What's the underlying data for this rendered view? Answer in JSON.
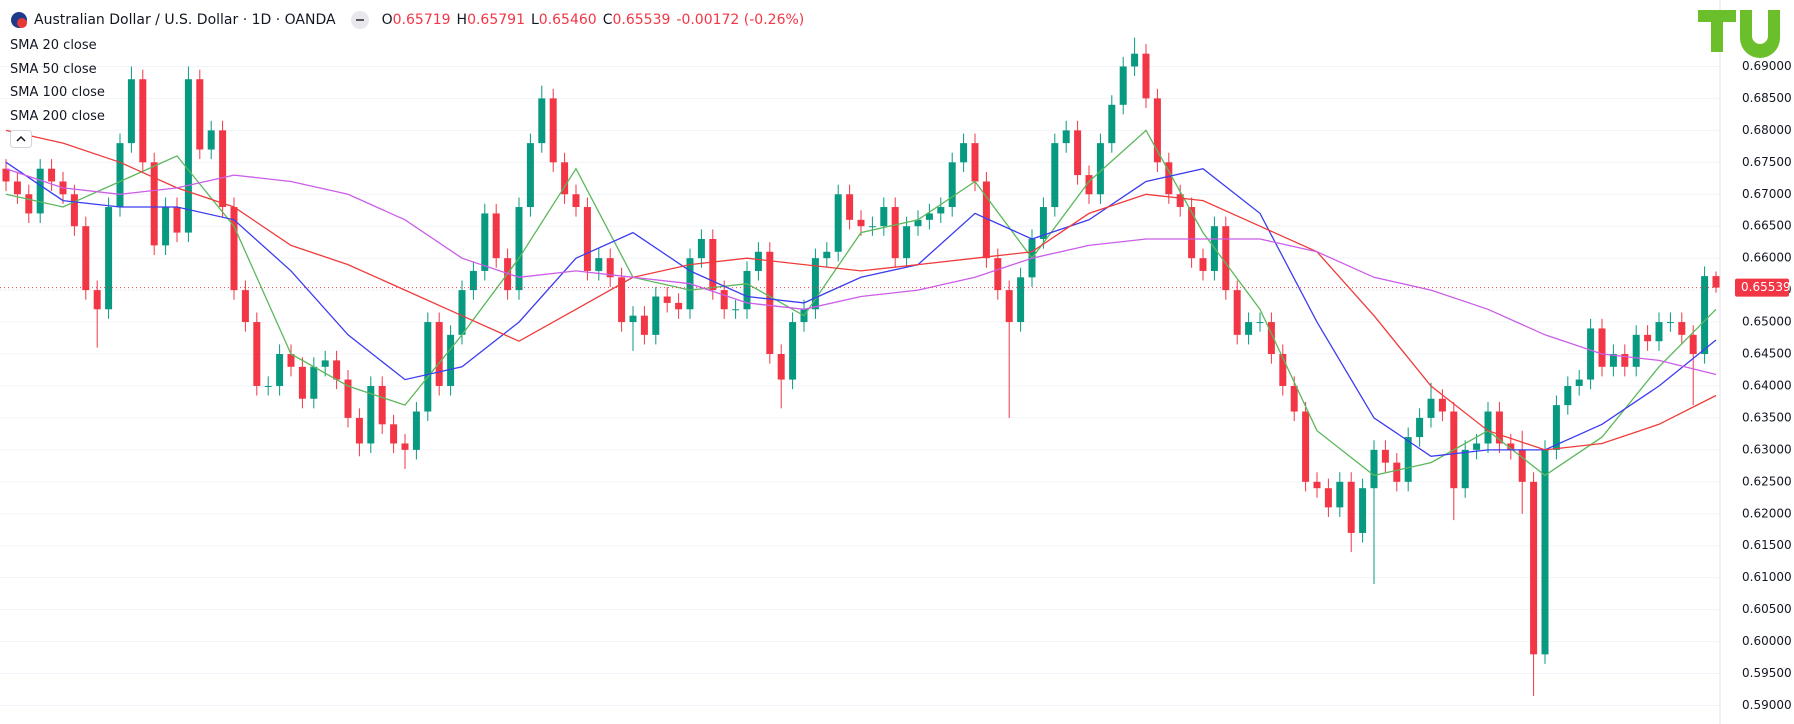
{
  "chart_data": {
    "type": "candlestick",
    "title": "Australian Dollar / U.S. Dollar · 1D · OANDA",
    "ohlc": [
      {
        "key": "O",
        "value": "0.65719"
      },
      {
        "key": "H",
        "value": "0.65791"
      },
      {
        "key": "L",
        "value": "0.65460"
      },
      {
        "key": "C",
        "value": "0.65539"
      }
    ],
    "change": "-0.00172 (-0.26%)",
    "up_color": "#089981",
    "down_color": "#f23645",
    "ylim": [
      0.5871,
      0.7004
    ],
    "yticks": [
      {
        "value": 0.59,
        "label": "0.59000"
      },
      {
        "value": 0.595,
        "label": "0.59500"
      },
      {
        "value": 0.6,
        "label": "0.60000"
      },
      {
        "value": 0.605,
        "label": "0.60500"
      },
      {
        "value": 0.61,
        "label": "0.61000"
      },
      {
        "value": 0.615,
        "label": "0.61500"
      },
      {
        "value": 0.62,
        "label": "0.62000"
      },
      {
        "value": 0.625,
        "label": "0.62500"
      },
      {
        "value": 0.63,
        "label": "0.63000"
      },
      {
        "value": 0.635,
        "label": "0.63500"
      },
      {
        "value": 0.64,
        "label": "0.64000"
      },
      {
        "value": 0.645,
        "label": "0.64500"
      },
      {
        "value": 0.65,
        "label": "0.65000"
      },
      {
        "value": 0.655,
        "label": "0.65500"
      },
      {
        "value": 0.66,
        "label": "0.66000"
      },
      {
        "value": 0.665,
        "label": "0.66500"
      },
      {
        "value": 0.67,
        "label": "0.67000"
      },
      {
        "value": 0.675,
        "label": "0.67500"
      },
      {
        "value": 0.68,
        "label": "0.68000"
      },
      {
        "value": 0.685,
        "label": "0.68500"
      },
      {
        "value": 0.69,
        "label": "0.69000"
      }
    ],
    "grid": true,
    "last_price": {
      "value": 0.65539,
      "label": "0.65539"
    },
    "candles": {
      "open": [
        0.674,
        0.672,
        0.67,
        0.667,
        0.674,
        0.672,
        0.67,
        0.665,
        0.655,
        0.652,
        0.668,
        0.678,
        0.688,
        0.675,
        0.662,
        0.668,
        0.664,
        0.688,
        0.677,
        0.68,
        0.668,
        0.655,
        0.65,
        0.64,
        0.64,
        0.645,
        0.643,
        0.638,
        0.643,
        0.644,
        0.641,
        0.635,
        0.631,
        0.64,
        0.634,
        0.631,
        0.63,
        0.636,
        0.65,
        0.64,
        0.648,
        0.655,
        0.658,
        0.667,
        0.66,
        0.655,
        0.668,
        0.678,
        0.685,
        0.675,
        0.67,
        0.668,
        0.658,
        0.66,
        0.657,
        0.65,
        0.651,
        0.648,
        0.654,
        0.653,
        0.652,
        0.66,
        0.663,
        0.655,
        0.652,
        0.652,
        0.658,
        0.661,
        0.645,
        0.641,
        0.65,
        0.652,
        0.66,
        0.661,
        0.67,
        0.666,
        0.665,
        0.665,
        0.668,
        0.66,
        0.665,
        0.666,
        0.667,
        0.668,
        0.675,
        0.678,
        0.672,
        0.66,
        0.655,
        0.65,
        0.657,
        0.663,
        0.668,
        0.678,
        0.68,
        0.673,
        0.67,
        0.678,
        0.684,
        0.69,
        0.692,
        0.685,
        0.675,
        0.67,
        0.668,
        0.66,
        0.658,
        0.665,
        0.655,
        0.648,
        0.65,
        0.65,
        0.645,
        0.64,
        0.636,
        0.625,
        0.624,
        0.621,
        0.625,
        0.617,
        0.624,
        0.63,
        0.628,
        0.625,
        0.632,
        0.635,
        0.638,
        0.636,
        0.624,
        0.63,
        0.631,
        0.636,
        0.631,
        0.63,
        0.625,
        0.598,
        0.63,
        0.637,
        0.64,
        0.641,
        0.649,
        0.643,
        0.645,
        0.643,
        0.648,
        0.647,
        0.65,
        0.65,
        0.648,
        0.645,
        0.65719
      ],
      "high": [
        0.6755,
        0.6735,
        0.6715,
        0.6755,
        0.6755,
        0.6735,
        0.6715,
        0.6665,
        0.6565,
        0.6695,
        0.6795,
        0.69,
        0.6895,
        0.6765,
        0.6695,
        0.6695,
        0.69,
        0.6895,
        0.6815,
        0.6815,
        0.6695,
        0.6565,
        0.6515,
        0.6415,
        0.6465,
        0.6465,
        0.6445,
        0.6445,
        0.6455,
        0.6455,
        0.6425,
        0.6365,
        0.6415,
        0.6415,
        0.6355,
        0.6325,
        0.6375,
        0.6515,
        0.6515,
        0.6495,
        0.6565,
        0.6595,
        0.6685,
        0.6685,
        0.6615,
        0.6695,
        0.6795,
        0.687,
        0.6865,
        0.6765,
        0.6715,
        0.6695,
        0.6615,
        0.6615,
        0.6585,
        0.6525,
        0.6525,
        0.6555,
        0.6555,
        0.6545,
        0.6615,
        0.6645,
        0.6645,
        0.6565,
        0.6535,
        0.6595,
        0.6625,
        0.6625,
        0.6465,
        0.6515,
        0.6535,
        0.6615,
        0.6625,
        0.6715,
        0.6715,
        0.6675,
        0.6665,
        0.6695,
        0.6695,
        0.6665,
        0.6675,
        0.6685,
        0.6695,
        0.6765,
        0.6795,
        0.6795,
        0.6735,
        0.6615,
        0.6565,
        0.6585,
        0.6645,
        0.6695,
        0.6795,
        0.6815,
        0.6815,
        0.6745,
        0.6795,
        0.6855,
        0.6915,
        0.6945,
        0.6935,
        0.6865,
        0.6765,
        0.6715,
        0.6695,
        0.6615,
        0.6665,
        0.6665,
        0.6565,
        0.6515,
        0.6515,
        0.6515,
        0.6465,
        0.6415,
        0.6375,
        0.6265,
        0.6255,
        0.6265,
        0.6265,
        0.6255,
        0.6315,
        0.6315,
        0.6295,
        0.6335,
        0.6365,
        0.6405,
        0.6395,
        0.6375,
        0.6315,
        0.6325,
        0.6375,
        0.6375,
        0.6325,
        0.633,
        0.6265,
        0.6315,
        0.6385,
        0.6415,
        0.6425,
        0.6505,
        0.6505,
        0.6465,
        0.6465,
        0.6495,
        0.6495,
        0.6515,
        0.6515,
        0.6515,
        0.6495,
        0.6587,
        0.65791
      ],
      "low": [
        0.6705,
        0.6685,
        0.6655,
        0.6655,
        0.6705,
        0.6685,
        0.6635,
        0.6535,
        0.646,
        0.6505,
        0.6665,
        0.6765,
        0.6735,
        0.6605,
        0.6605,
        0.6625,
        0.6625,
        0.6755,
        0.6755,
        0.6665,
        0.6535,
        0.6485,
        0.6385,
        0.6385,
        0.6385,
        0.6415,
        0.6365,
        0.6365,
        0.6415,
        0.6395,
        0.6335,
        0.629,
        0.6295,
        0.6325,
        0.6295,
        0.627,
        0.6285,
        0.6345,
        0.6385,
        0.6385,
        0.6465,
        0.6535,
        0.6565,
        0.6585,
        0.6535,
        0.6535,
        0.6665,
        0.6765,
        0.6735,
        0.6685,
        0.6665,
        0.6565,
        0.6565,
        0.6555,
        0.6485,
        0.6455,
        0.6465,
        0.6465,
        0.6515,
        0.6505,
        0.6505,
        0.6585,
        0.6535,
        0.6505,
        0.6505,
        0.6505,
        0.6565,
        0.6435,
        0.6365,
        0.6395,
        0.6485,
        0.6505,
        0.6585,
        0.6595,
        0.6645,
        0.6635,
        0.6635,
        0.6635,
        0.6585,
        0.6585,
        0.6635,
        0.6645,
        0.6655,
        0.6665,
        0.6735,
        0.6705,
        0.6585,
        0.6535,
        0.635,
        0.6485,
        0.6555,
        0.6615,
        0.6665,
        0.6765,
        0.6715,
        0.6685,
        0.6685,
        0.6765,
        0.6825,
        0.6885,
        0.6835,
        0.6735,
        0.6685,
        0.6665,
        0.6585,
        0.6565,
        0.6565,
        0.6535,
        0.6465,
        0.6465,
        0.6485,
        0.6435,
        0.6385,
        0.6345,
        0.6235,
        0.6225,
        0.6195,
        0.6195,
        0.614,
        0.6155,
        0.609,
        0.6265,
        0.6235,
        0.6235,
        0.6305,
        0.6335,
        0.6345,
        0.619,
        0.6225,
        0.6285,
        0.6295,
        0.6295,
        0.6285,
        0.62,
        0.5915,
        0.5965,
        0.6285,
        0.6355,
        0.6385,
        0.6395,
        0.6415,
        0.6415,
        0.6415,
        0.6415,
        0.6455,
        0.6455,
        0.6485,
        0.6465,
        0.637,
        0.6435,
        0.6546
      ],
      "close": [
        0.672,
        0.67,
        0.667,
        0.674,
        0.672,
        0.67,
        0.665,
        0.655,
        0.652,
        0.668,
        0.678,
        0.688,
        0.675,
        0.662,
        0.668,
        0.664,
        0.688,
        0.677,
        0.68,
        0.668,
        0.655,
        0.65,
        0.64,
        0.64,
        0.645,
        0.643,
        0.638,
        0.643,
        0.644,
        0.641,
        0.635,
        0.631,
        0.64,
        0.634,
        0.631,
        0.63,
        0.636,
        0.65,
        0.64,
        0.648,
        0.655,
        0.658,
        0.667,
        0.66,
        0.655,
        0.668,
        0.678,
        0.685,
        0.675,
        0.67,
        0.668,
        0.658,
        0.66,
        0.657,
        0.65,
        0.651,
        0.648,
        0.654,
        0.653,
        0.652,
        0.66,
        0.663,
        0.655,
        0.652,
        0.652,
        0.658,
        0.661,
        0.645,
        0.641,
        0.65,
        0.652,
        0.66,
        0.661,
        0.67,
        0.666,
        0.665,
        0.665,
        0.668,
        0.66,
        0.665,
        0.666,
        0.667,
        0.668,
        0.675,
        0.678,
        0.672,
        0.66,
        0.655,
        0.65,
        0.657,
        0.663,
        0.668,
        0.678,
        0.68,
        0.673,
        0.67,
        0.678,
        0.684,
        0.69,
        0.692,
        0.685,
        0.675,
        0.67,
        0.668,
        0.66,
        0.658,
        0.665,
        0.655,
        0.648,
        0.65,
        0.65,
        0.645,
        0.64,
        0.636,
        0.625,
        0.624,
        0.621,
        0.625,
        0.617,
        0.624,
        0.63,
        0.628,
        0.625,
        0.632,
        0.635,
        0.638,
        0.636,
        0.624,
        0.63,
        0.631,
        0.636,
        0.631,
        0.63,
        0.625,
        0.598,
        0.63,
        0.637,
        0.64,
        0.641,
        0.649,
        0.643,
        0.645,
        0.643,
        0.648,
        0.647,
        0.65,
        0.65,
        0.648,
        0.645,
        0.65719,
        0.65539
      ]
    },
    "series": [
      {
        "name": "SMA 20 close",
        "color": "#5cb85c",
        "x": [
          0,
          5,
          10,
          15,
          20,
          25,
          30,
          35,
          40,
          45,
          50,
          55,
          60,
          65,
          70,
          75,
          80,
          85,
          90,
          95,
          100,
          105,
          110,
          115,
          120,
          125,
          130,
          135,
          140,
          145,
          150
        ],
        "values": [
          0.67,
          0.668,
          0.672,
          0.676,
          0.665,
          0.645,
          0.64,
          0.637,
          0.648,
          0.66,
          0.674,
          0.657,
          0.655,
          0.656,
          0.651,
          0.664,
          0.666,
          0.672,
          0.66,
          0.672,
          0.68,
          0.664,
          0.652,
          0.633,
          0.626,
          0.628,
          0.633,
          0.626,
          0.632,
          0.643,
          0.652
        ]
      },
      {
        "name": "SMA 50 close",
        "color": "#3d3df0",
        "x": [
          0,
          5,
          10,
          15,
          20,
          25,
          30,
          35,
          40,
          45,
          50,
          55,
          60,
          65,
          70,
          75,
          80,
          85,
          90,
          95,
          100,
          105,
          110,
          115,
          120,
          125,
          130,
          135,
          140,
          145,
          150
        ],
        "values": [
          0.675,
          0.669,
          0.668,
          0.668,
          0.666,
          0.658,
          0.648,
          0.641,
          0.643,
          0.65,
          0.66,
          0.664,
          0.658,
          0.654,
          0.653,
          0.657,
          0.659,
          0.667,
          0.663,
          0.666,
          0.672,
          0.674,
          0.667,
          0.65,
          0.635,
          0.629,
          0.63,
          0.63,
          0.634,
          0.64,
          0.6472
        ]
      },
      {
        "name": "SMA 100 close",
        "color": "#ef3b3b",
        "x": [
          0,
          5,
          10,
          15,
          20,
          25,
          30,
          35,
          40,
          45,
          50,
          55,
          60,
          65,
          70,
          75,
          80,
          85,
          90,
          95,
          100,
          105,
          110,
          115,
          120,
          125,
          130,
          135,
          140,
          145,
          150
        ],
        "values": [
          0.68,
          0.678,
          0.675,
          0.671,
          0.668,
          0.662,
          0.659,
          0.655,
          0.651,
          0.647,
          0.652,
          0.657,
          0.659,
          0.66,
          0.659,
          0.658,
          0.659,
          0.66,
          0.661,
          0.667,
          0.67,
          0.669,
          0.665,
          0.661,
          0.651,
          0.64,
          0.633,
          0.63,
          0.631,
          0.634,
          0.6385
        ]
      },
      {
        "name": "SMA 200 close",
        "color": "#cc5de8",
        "x": [
          0,
          5,
          10,
          15,
          20,
          25,
          30,
          35,
          40,
          45,
          50,
          55,
          60,
          65,
          70,
          75,
          80,
          85,
          90,
          95,
          100,
          105,
          110,
          115,
          120,
          125,
          130,
          135,
          140,
          145,
          150
        ],
        "values": [
          0.674,
          0.671,
          0.67,
          0.671,
          0.673,
          0.672,
          0.67,
          0.666,
          0.66,
          0.657,
          0.658,
          0.657,
          0.656,
          0.653,
          0.652,
          0.654,
          0.655,
          0.657,
          0.66,
          0.662,
          0.663,
          0.663,
          0.663,
          0.661,
          0.657,
          0.655,
          0.652,
          0.648,
          0.645,
          0.644,
          0.6418
        ]
      }
    ]
  }
}
